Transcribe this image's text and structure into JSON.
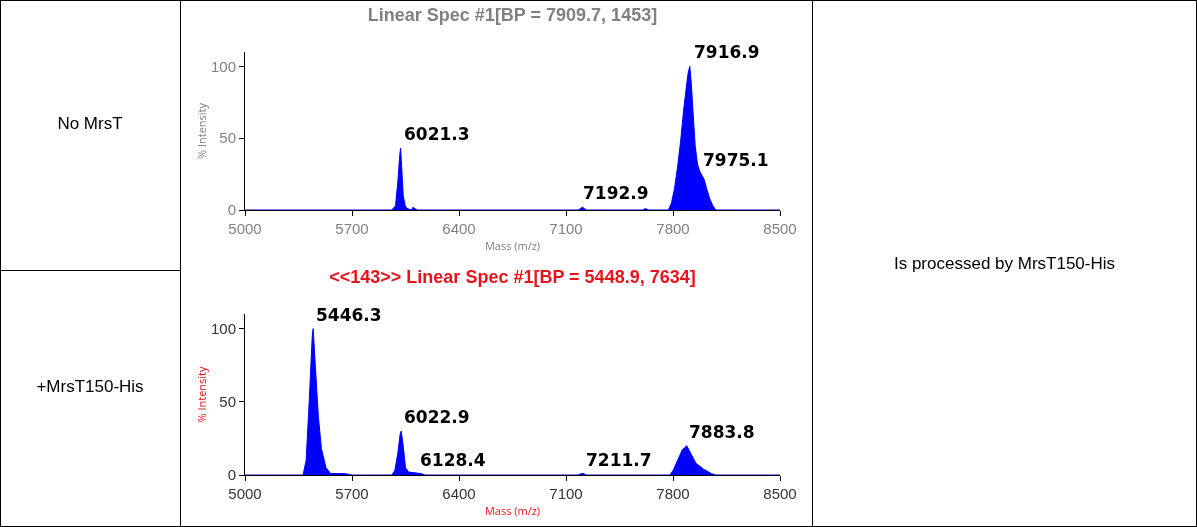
{
  "chart_data": [
    {
      "type": "area",
      "title": "Linear Spec #1[BP = 7909.7, 1453]",
      "xlabel": "Mass (m/z)",
      "ylabel": "% Intensity",
      "xlim": [
        5000,
        8500
      ],
      "ylim": [
        0,
        110
      ],
      "xticks": [
        5000,
        5700,
        6400,
        7100,
        7800,
        8500
      ],
      "yticks": [
        0,
        50,
        100
      ],
      "grid": false,
      "series": [
        {
          "color": "#0000ff",
          "x": [
            5000,
            5960,
            5985,
            6000,
            6012,
            6018,
            6025,
            6035,
            6048,
            6060,
            6090,
            6100,
            6110,
            6130,
            7180,
            7195,
            7207,
            7220,
            7235,
            7600,
            7620,
            7640,
            7770,
            7790,
            7810,
            7830,
            7850,
            7870,
            7890,
            7900,
            7910,
            7920,
            7930,
            7945,
            7960,
            7975,
            7990,
            8005,
            8020,
            8040,
            8060,
            8080,
            8500
          ],
          "values": [
            0,
            0,
            3,
            20,
            38,
            43,
            30,
            10,
            3,
            1,
            0,
            2,
            1,
            0,
            0,
            1,
            2,
            1,
            0,
            0,
            1,
            0,
            0,
            5,
            15,
            30,
            48,
            70,
            88,
            96,
            100,
            88,
            70,
            45,
            32,
            27,
            24,
            21,
            15,
            8,
            3,
            0,
            0
          ]
        }
      ],
      "annotations": [
        "No MrsT",
        {
          "text": "6021.3",
          "x": 6021.3,
          "y": 43
        },
        {
          "text": "7192.9",
          "x": 7192.9,
          "y": 2
        },
        {
          "text": "7916.9",
          "x": 7916.9,
          "y": 100
        },
        {
          "text": "7975.1",
          "x": 7975.1,
          "y": 25
        }
      ]
    },
    {
      "type": "area",
      "title": "<<143>> Linear Spec #1[BP = 5448.9, 7634]",
      "xlabel": "Mass (m/z)",
      "ylabel": "% Intensity",
      "xlim": [
        5000,
        8500
      ],
      "ylim": [
        0,
        110
      ],
      "xticks": [
        5000,
        5700,
        6400,
        7100,
        7800,
        8500
      ],
      "yticks": [
        0,
        50,
        100
      ],
      "grid": false,
      "series": [
        {
          "color": "#0000ff",
          "x": [
            5000,
            5380,
            5400,
            5420,
            5440,
            5446,
            5460,
            5480,
            5500,
            5530,
            5560,
            5650,
            5700,
            5960,
            5980,
            6000,
            6015,
            6022,
            6035,
            6050,
            6070,
            6150,
            6180,
            7180,
            7200,
            7215,
            7230,
            7780,
            7800,
            7830,
            7860,
            7890,
            7920,
            7950,
            8000,
            8050,
            8080,
            8500
          ],
          "values": [
            0,
            0,
            10,
            50,
            95,
            100,
            75,
            40,
            18,
            5,
            1,
            1,
            0,
            0,
            3,
            15,
            28,
            30,
            20,
            5,
            2,
            1,
            0,
            0,
            1,
            1,
            0,
            0,
            3,
            10,
            17,
            20,
            14,
            8,
            4,
            1,
            0,
            0
          ]
        }
      ],
      "annotations": [
        "+MrsT150-His",
        {
          "text": "5446.3",
          "x": 5446.3,
          "y": 100
        },
        {
          "text": "6022.9",
          "x": 6022.9,
          "y": 30
        },
        {
          "text": "6128.4",
          "x": 6128.4,
          "y": 1
        },
        {
          "text": "7211.7",
          "x": 7211.7,
          "y": 1
        },
        {
          "text": "7883.8",
          "x": 7883.8,
          "y": 20
        }
      ]
    },
    {
      "type": "other",
      "annotations": [
        "Is processed by MrsT150-His"
      ]
    }
  ]
}
